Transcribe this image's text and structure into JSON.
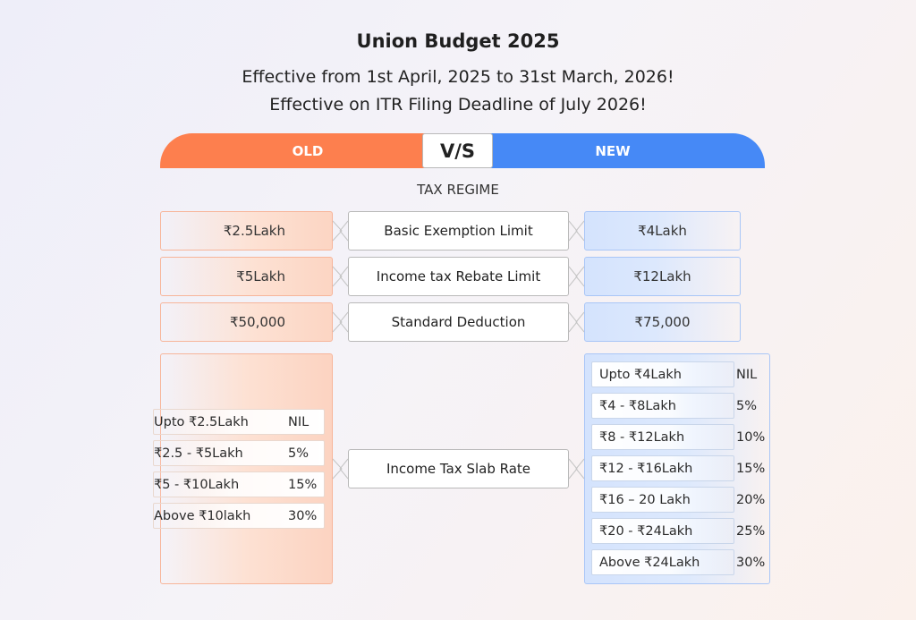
{
  "header": {
    "title": "Union Budget 2025",
    "subtitle_1": "Effective from 1st April, 2025 to 31st March, 2026!",
    "subtitle_2": "Effective on ITR Filing Deadline of July 2026!"
  },
  "comparison_bar": {
    "old_label": "OLD",
    "vs_label": "V/S",
    "new_label": "NEW",
    "old_color": "#fd7f4e",
    "new_color": "#4689f6"
  },
  "section_label": "TAX REGIME",
  "rows": [
    {
      "old": "₹2.5Lakh",
      "label": "Basic Exemption Limit",
      "new": "₹4Lakh"
    },
    {
      "old": "₹5Lakh",
      "label": "Income tax Rebate Limit",
      "new": "₹12Lakh"
    },
    {
      "old": "₹50,000",
      "label": "Standard Deduction",
      "new": "₹75,000"
    }
  ],
  "slab_label": "Income Tax Slab Rate",
  "old_slabs": [
    {
      "range": "Upto ₹2.5Lakh",
      "rate": "NIL"
    },
    {
      "range": "₹2.5 - ₹5Lakh",
      "rate": "5%"
    },
    {
      "range": "₹5 - ₹10Lakh",
      "rate": "15%"
    },
    {
      "range": "Above ₹10lakh",
      "rate": "30%"
    }
  ],
  "new_slabs": [
    {
      "range": "Upto ₹4Lakh",
      "rate": "NIL"
    },
    {
      "range": "₹4 - ₹8Lakh",
      "rate": "5%"
    },
    {
      "range": "₹8 - ₹12Lakh",
      "rate": "10%"
    },
    {
      "range": "₹12 - ₹16Lakh",
      "rate": "15%"
    },
    {
      "range": "₹16 – 20 Lakh",
      "rate": "20%"
    },
    {
      "range": "₹20 - ₹24Lakh",
      "rate": "25%"
    },
    {
      "range": "Above ₹24Lakh",
      "rate": "30%"
    }
  ]
}
